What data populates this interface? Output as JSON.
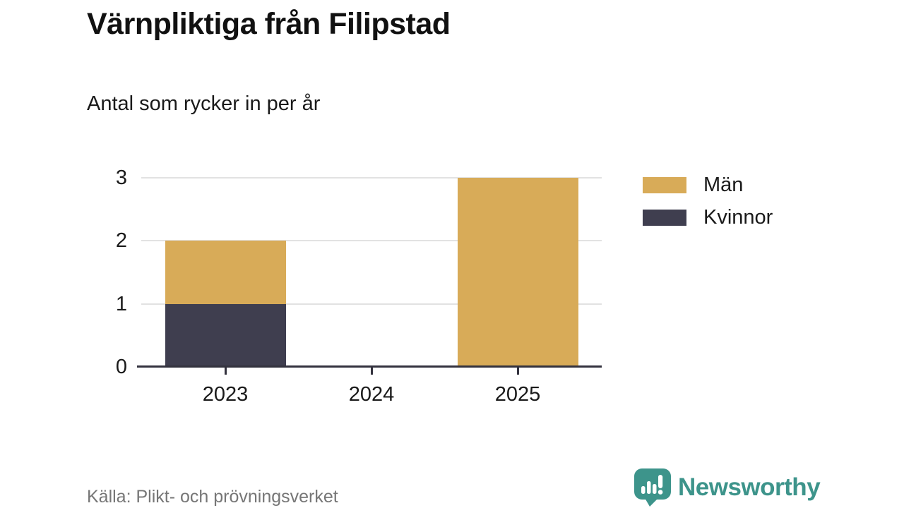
{
  "chart_data": {
    "type": "bar",
    "stacked": true,
    "title": "Värnpliktiga från Filipstad",
    "subtitle": "Antal som rycker in per år",
    "categories": [
      "2023",
      "2024",
      "2025"
    ],
    "series": [
      {
        "name": "Män",
        "color": "#d8ab58",
        "values": [
          1,
          0,
          3
        ]
      },
      {
        "name": "Kvinnor",
        "color": "#3f3e4f",
        "values": [
          1,
          0,
          0
        ]
      }
    ],
    "stack_order_bottom_to_top": [
      "Kvinnor",
      "Män"
    ],
    "ylim": [
      0,
      3
    ],
    "yticks": [
      0,
      1,
      2,
      3
    ],
    "grid": true,
    "legend_position": "right"
  },
  "footer": {
    "source": "Källa: Plikt- och prövningsverket",
    "brand": "Newsworthy"
  },
  "colors": {
    "men": "#d8ab58",
    "women": "#3f3e4f",
    "axis": "#33323e",
    "grid": "#e2e2e2",
    "text": "#1a1a1a",
    "muted_text": "#767676",
    "brand_teal": "#3d948b"
  },
  "icons": {
    "brand_logo": "speech-bubble-bar-chart-icon"
  }
}
